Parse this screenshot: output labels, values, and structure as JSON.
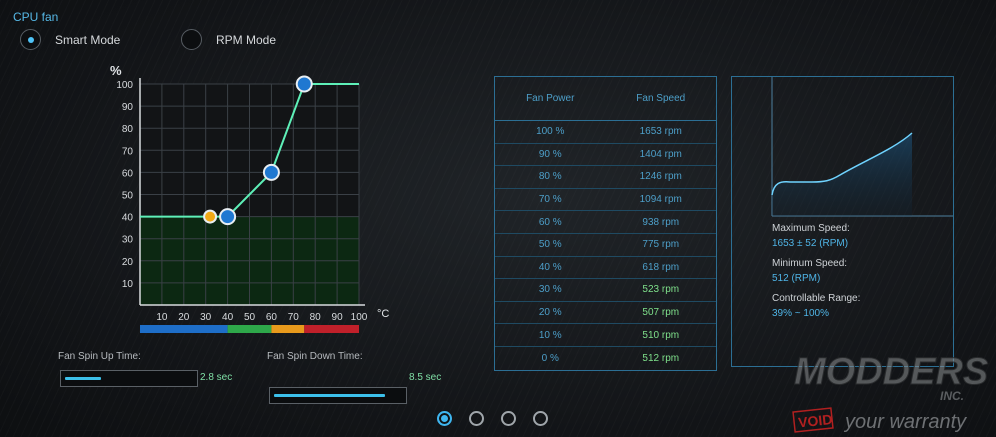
{
  "title": "CPU fan",
  "modes": {
    "smart": "Smart Mode",
    "rpm": "RPM Mode"
  },
  "chart_data": {
    "type": "line",
    "y_unit": "%",
    "x_unit": "°C",
    "y_ticks": [
      "10",
      "20",
      "30",
      "40",
      "50",
      "60",
      "70",
      "80",
      "90",
      "100"
    ],
    "x_ticks": [
      "10",
      "20",
      "30",
      "40",
      "50",
      "60",
      "70",
      "80",
      "90",
      "100"
    ],
    "xlim": [
      0,
      100
    ],
    "ylim": [
      0,
      100
    ],
    "series": [
      {
        "x": [
          0,
          40,
          60,
          75,
          100
        ],
        "y": [
          40,
          40,
          60,
          100,
          100
        ]
      }
    ],
    "markers": [
      {
        "x": 32,
        "y": 40,
        "color": "#f2a916"
      },
      {
        "x": 40,
        "y": 40,
        "color": "#1f78d1"
      },
      {
        "x": 60,
        "y": 60,
        "color": "#1f78d1"
      },
      {
        "x": 75,
        "y": 100,
        "color": "#1f78d1"
      }
    ],
    "temp_zones": [
      {
        "from": 0,
        "to": 40,
        "color": "#1e6ec8"
      },
      {
        "from": 40,
        "to": 60,
        "color": "#2ea84a"
      },
      {
        "from": 60,
        "to": 75,
        "color": "#e89a1c"
      },
      {
        "from": 75,
        "to": 100,
        "color": "#c0202a"
      }
    ]
  },
  "spin_up": {
    "label": "Fan Spin Up Time:",
    "value": "2.8 sec",
    "fraction": 0.28
  },
  "spin_down": {
    "label": "Fan Spin Down Time:",
    "value": "8.5 sec",
    "fraction": 0.85
  },
  "table": {
    "headers": [
      "Fan Power",
      "Fan Speed"
    ],
    "rows": [
      {
        "power": "100 %",
        "speed": "1653 rpm",
        "green": false
      },
      {
        "power": "90 %",
        "speed": "1404 rpm",
        "green": false
      },
      {
        "power": "80 %",
        "speed": "1246 rpm",
        "green": false
      },
      {
        "power": "70 %",
        "speed": "1094 rpm",
        "green": false
      },
      {
        "power": "60 %",
        "speed": "938 rpm",
        "green": false
      },
      {
        "power": "50 %",
        "speed": "775 rpm",
        "green": false
      },
      {
        "power": "40 %",
        "speed": "618 rpm",
        "green": false
      },
      {
        "power": "30 %",
        "speed": "523 rpm",
        "green": true
      },
      {
        "power": "20 %",
        "speed": "507 rpm",
        "green": true
      },
      {
        "power": "10 %",
        "speed": "510 rpm",
        "green": true
      },
      {
        "power": "0 %",
        "speed": "512 rpm",
        "green": true
      }
    ]
  },
  "info": {
    "max_label": "Maximum Speed:",
    "max_value": "1653 ± 52 (RPM)",
    "min_label": "Minimum Speed:",
    "min_value": "512 (RPM)",
    "range_label": "Controllable Range:",
    "range_value": "39% ~ 100%"
  },
  "pager": {
    "count": 4,
    "active": 0
  },
  "watermark": {
    "line1": "MODDERS",
    "line2": "INC.",
    "void": "VOID",
    "tagline": "your warranty"
  }
}
